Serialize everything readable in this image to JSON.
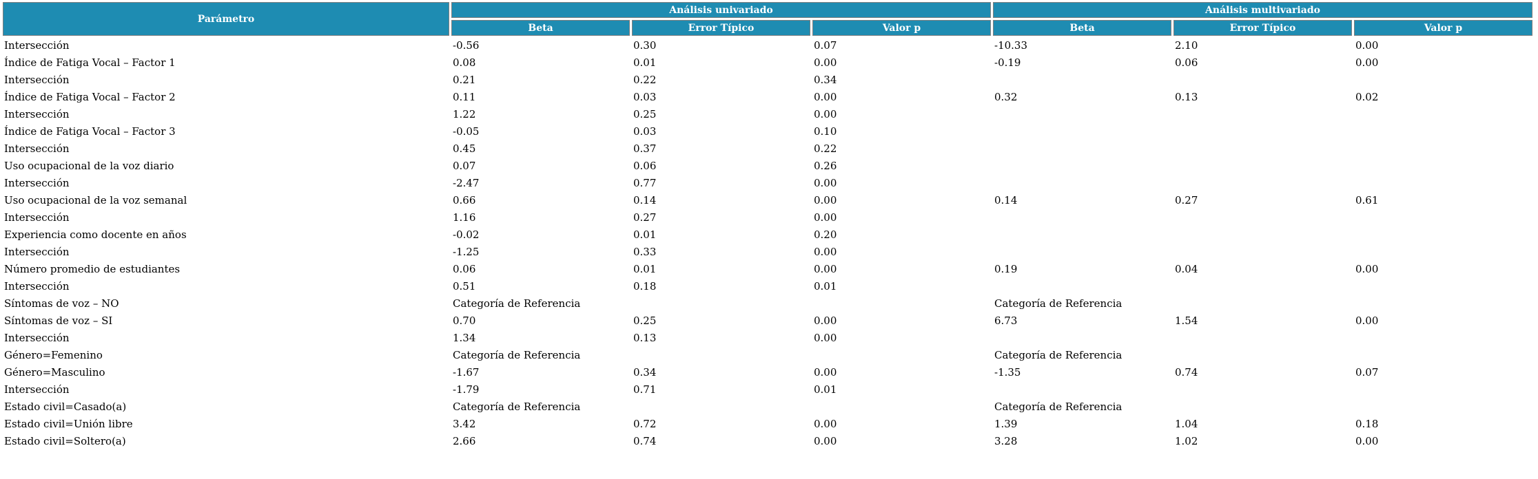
{
  "table": {
    "param_header": "Parámetro",
    "groups": [
      {
        "label": "Análisis univariado",
        "columns": [
          "Beta",
          "Error Típico",
          "Valor p"
        ]
      },
      {
        "label": "Análisis multivariado",
        "columns": [
          "Beta",
          "Error Típico",
          "Valor p"
        ]
      }
    ],
    "rows": [
      {
        "param": "Intersección",
        "cells": [
          "-0.56",
          "0.30",
          "0.07",
          "-10.33",
          "2.10",
          "0.00"
        ]
      },
      {
        "param": "Índice de Fatiga Vocal – Factor 1",
        "cells": [
          "0.08",
          "0.01",
          "0.00",
          "-0.19",
          "0.06",
          "0.00"
        ]
      },
      {
        "param": "Intersección",
        "cells": [
          "0.21",
          "0.22",
          "0.34",
          "",
          "",
          ""
        ]
      },
      {
        "param": "Índice de Fatiga Vocal – Factor 2",
        "cells": [
          "0.11",
          "0.03",
          "0.00",
          "0.32",
          "0.13",
          "0.02"
        ]
      },
      {
        "param": "Intersección",
        "cells": [
          "1.22",
          "0.25",
          "0.00",
          "",
          "",
          ""
        ]
      },
      {
        "param": "Índice de Fatiga Vocal – Factor 3",
        "cells": [
          "-0.05",
          "0.03",
          "0.10",
          "",
          "",
          ""
        ]
      },
      {
        "param": "Intersección",
        "cells": [
          "0.45",
          "0.37",
          "0.22",
          "",
          "",
          ""
        ]
      },
      {
        "param": "Uso ocupacional de la voz diario",
        "cells": [
          "0.07",
          "0.06",
          "0.26",
          "",
          "",
          ""
        ]
      },
      {
        "param": "Intersección",
        "cells": [
          "-2.47",
          "0.77",
          "0.00",
          "",
          "",
          ""
        ]
      },
      {
        "param": "Uso ocupacional de la voz semanal",
        "cells": [
          "0.66",
          "0.14",
          "0.00",
          "0.14",
          "0.27",
          "0.61"
        ]
      },
      {
        "param": "Intersección",
        "cells": [
          "1.16",
          "0.27",
          "0.00",
          "",
          "",
          ""
        ]
      },
      {
        "param": "Experiencia como docente en años",
        "cells": [
          "-0.02",
          "0.01",
          "0.20",
          "",
          "",
          ""
        ]
      },
      {
        "param": "Intersección",
        "cells": [
          "-1.25",
          "0.33",
          "0.00",
          "",
          "",
          ""
        ]
      },
      {
        "param": "Número promedio de estudiantes",
        "cells": [
          "0.06",
          "0.01",
          "0.00",
          "0.19",
          "0.04",
          "0.00"
        ]
      },
      {
        "param": "Intersección",
        "cells": [
          "0.51",
          "0.18",
          "0.01",
          "",
          "",
          ""
        ]
      },
      {
        "param": "Síntomas de voz – NO",
        "cells": [
          "Categoría de Referencia",
          "",
          "",
          "Categoría de Referencia",
          "",
          ""
        ]
      },
      {
        "param": "Síntomas de voz – SI",
        "cells": [
          "0.70",
          "0.25",
          "0.00",
          "6.73",
          "1.54",
          "0.00"
        ]
      },
      {
        "param": "Intersección",
        "cells": [
          "1.34",
          "0.13",
          "0.00",
          "",
          "",
          ""
        ]
      },
      {
        "param": "Género=Femenino",
        "cells": [
          "Categoría de Referencia",
          "",
          "",
          "Categoría de Referencia",
          "",
          ""
        ]
      },
      {
        "param": "Género=Masculino",
        "cells": [
          "-1.67",
          "0.34",
          "0.00",
          "-1.35",
          "0.74",
          "0.07"
        ]
      },
      {
        "param": "Intersección",
        "cells": [
          "-1.79",
          "0.71",
          "0.01",
          "",
          "",
          ""
        ]
      },
      {
        "param": "Estado civil=Casado(a)",
        "cells": [
          "Categoría de Referencia",
          "",
          "",
          "Categoría de Referencia",
          "",
          ""
        ]
      },
      {
        "param": "Estado civil=Unión libre",
        "cells": [
          "3.42",
          "0.72",
          "0.00",
          "1.39",
          "1.04",
          "0.18"
        ]
      },
      {
        "param": "Estado civil=Soltero(a)",
        "cells": [
          "2.66",
          "0.74",
          "0.00",
          "3.28",
          "1.02",
          "0.00"
        ]
      }
    ],
    "colors": {
      "header_bg": "#1E8CB2",
      "header_text": "#FFFFFF",
      "header_border": "#7F7F7F",
      "body_text": "#000000"
    }
  }
}
